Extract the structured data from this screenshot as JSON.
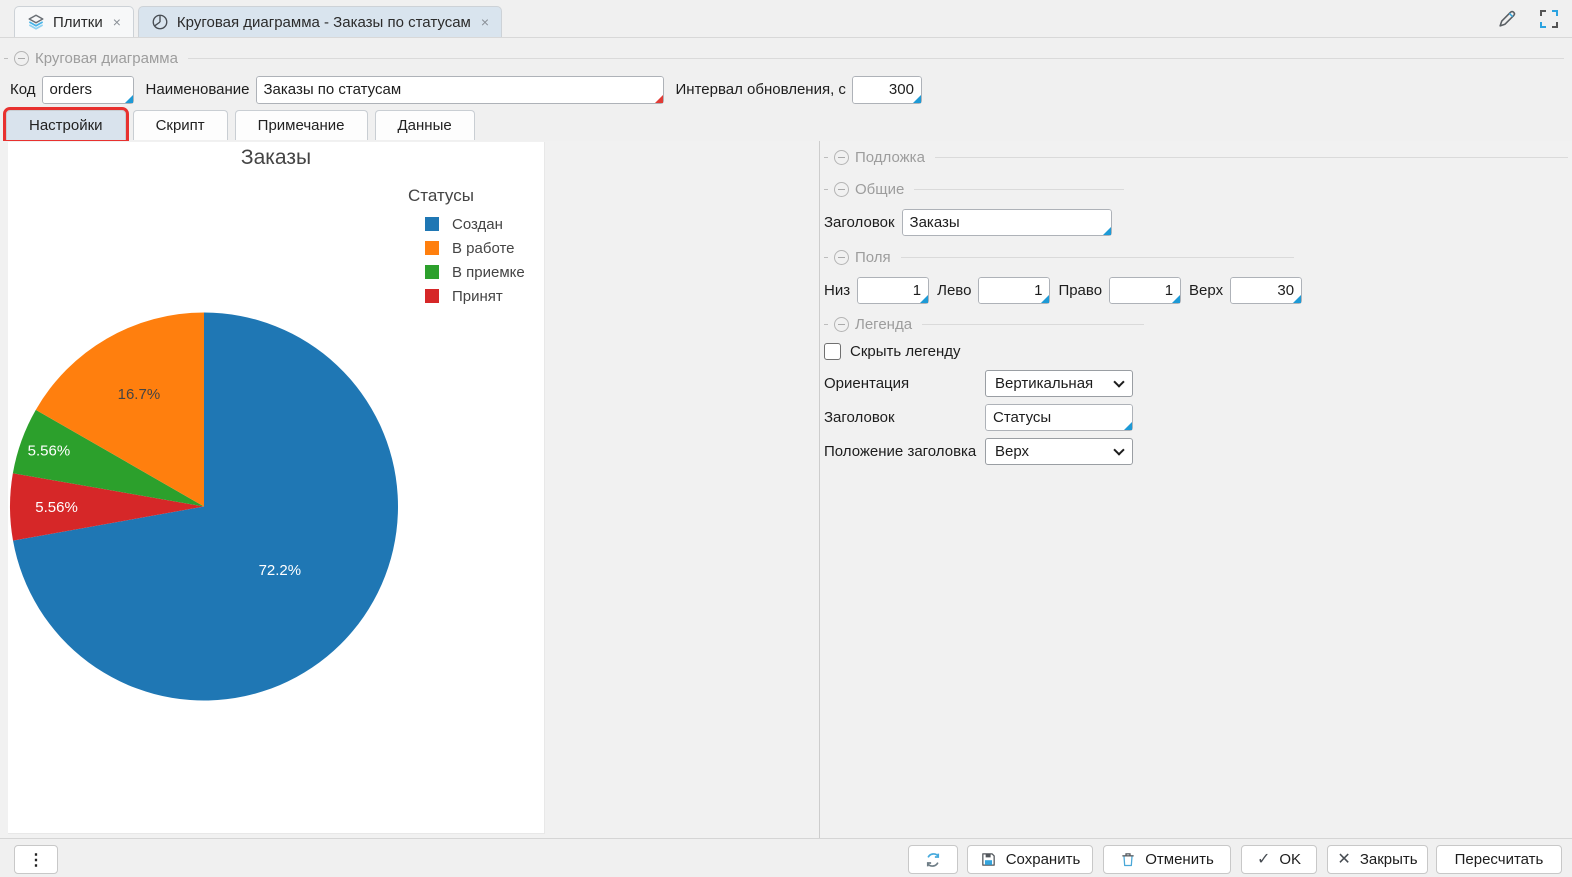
{
  "icons": {
    "close": "×",
    "kebab": "⋮",
    "check": "✓",
    "cross": "✕"
  },
  "colors": {
    "annotation": "#e8312f",
    "accent_blue": "#1d9ad6",
    "modified_red": "#e23b35",
    "active_tab_bg": "#d9e4ee"
  },
  "top_tabs": [
    {
      "label": "Плитки",
      "icon": "layers-icon",
      "active": false
    },
    {
      "label": "Круговая диаграмма - Заказы по статусам",
      "icon": "pie-chart-icon",
      "active": true
    }
  ],
  "group_header": {
    "title": "Круговая диаграмма"
  },
  "form": {
    "code_label": "Код",
    "code_value": "orders",
    "name_label": "Наименование",
    "name_value": "Заказы по статусам",
    "interval_label": "Интервал обновления, с",
    "interval_value": "300"
  },
  "subtabs": [
    {
      "label": "Настройки",
      "active": true,
      "annotated": true
    },
    {
      "label": "Скрипт",
      "active": false
    },
    {
      "label": "Примечание",
      "active": false
    },
    {
      "label": "Данные",
      "active": false
    }
  ],
  "chart_data": {
    "type": "pie",
    "title": "Заказы",
    "legend_title": "Статусы",
    "legend_position": "right-top",
    "labels": [
      "Создан",
      "В работе",
      "В приемке",
      "Принят"
    ],
    "values": [
      72.2,
      16.7,
      5.56,
      5.56
    ],
    "value_labels": [
      "72.2%",
      "16.7%",
      "5.56%",
      "5.56%"
    ],
    "colors": [
      "#1f77b4",
      "#ff7f0e",
      "#2ca02c",
      "#d62728"
    ],
    "label_text_colors": [
      "#ffffff",
      "#444444",
      "#ffffff",
      "#ffffff"
    ],
    "label_radius_frac": [
      0.51,
      0.67,
      0.85,
      0.76
    ],
    "start_angle_deg": 0,
    "direction": "clockwise",
    "draw_order": [
      0,
      3,
      2,
      1
    ]
  },
  "settings": {
    "sections": {
      "backdrop": "Подложка",
      "general": "Общие",
      "margins": "Поля",
      "legend": "Легенда"
    },
    "general": {
      "title_label": "Заголовок",
      "title_value": "Заказы"
    },
    "margins": {
      "fields": [
        {
          "label": "Низ",
          "value": "1"
        },
        {
          "label": "Лево",
          "value": "1"
        },
        {
          "label": "Право",
          "value": "1"
        },
        {
          "label": "Верх",
          "value": "30"
        }
      ]
    },
    "legend": {
      "hide_label": "Скрыть легенду",
      "hide_checked": false,
      "orientation_label": "Ориентация",
      "orientation_value": "Вертикальная",
      "title_label": "Заголовок",
      "title_value": "Статусы",
      "title_position_label": "Положение заголовка",
      "title_position_value": "Верх"
    }
  },
  "toolbar": {
    "save_label": "Сохранить",
    "cancel_label": "Отменить",
    "ok_label": "OK",
    "close_label": "Закрыть",
    "recalc_label": "Пересчитать"
  }
}
